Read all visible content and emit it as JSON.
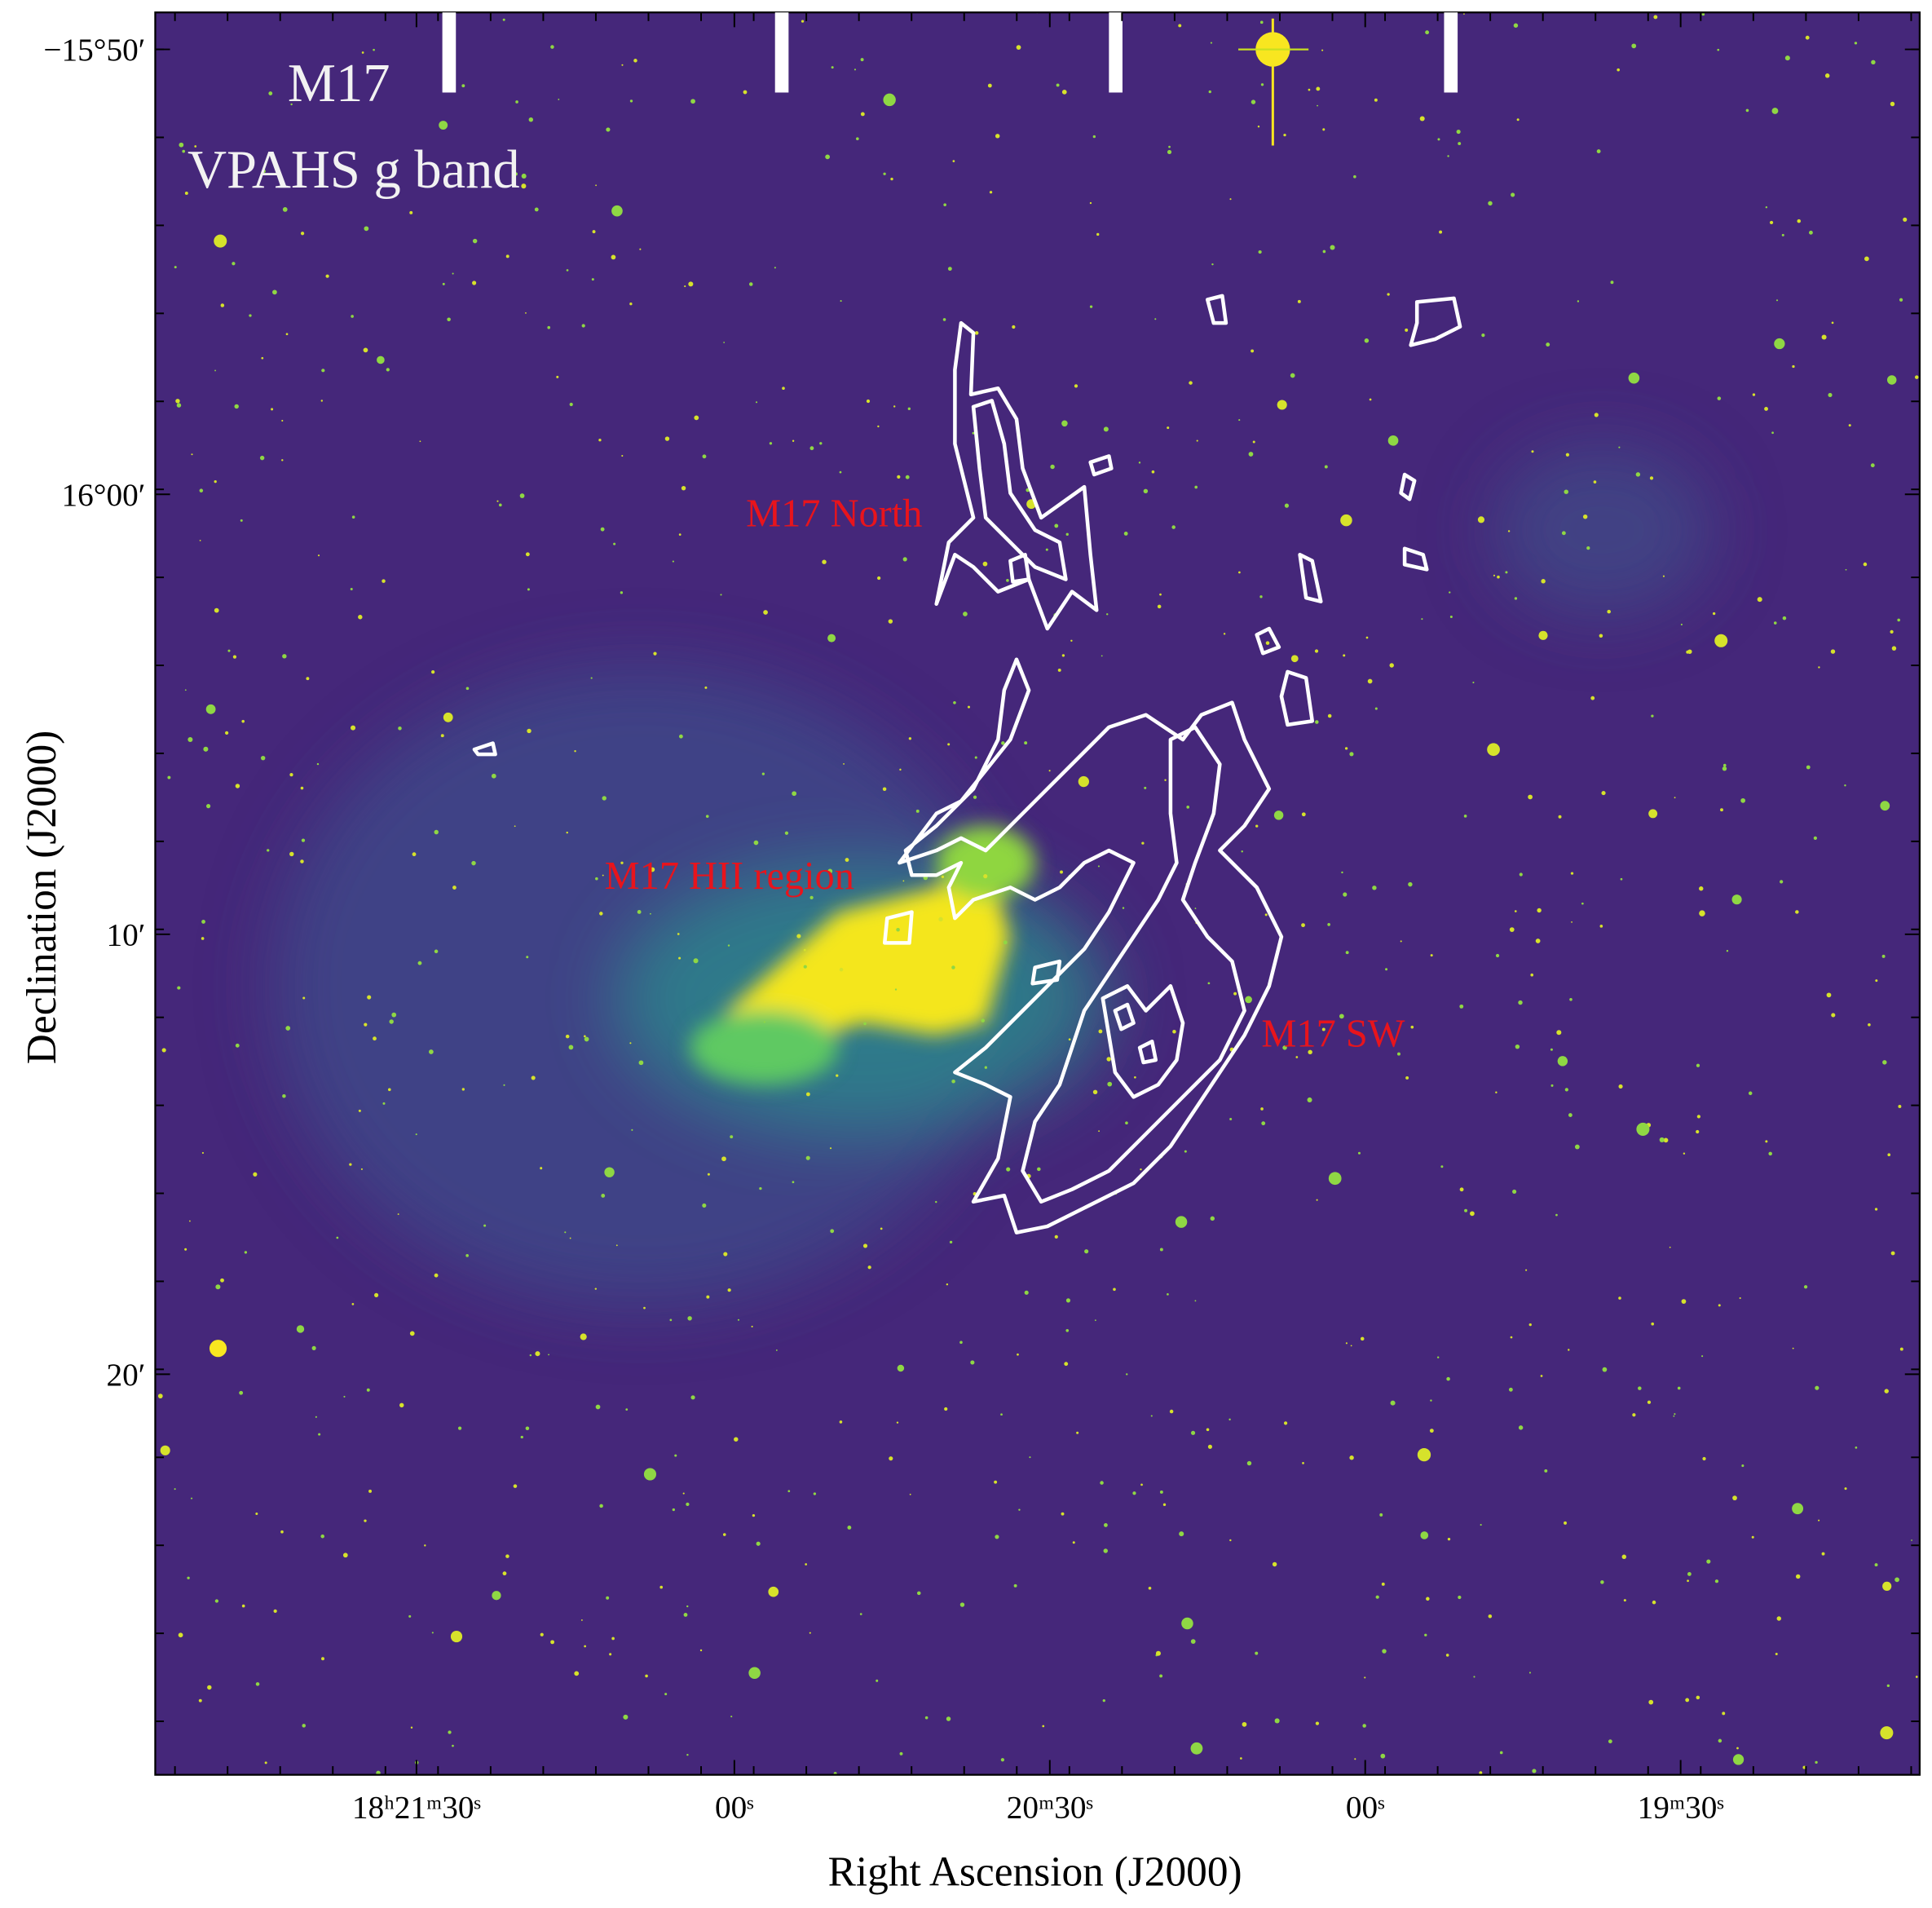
{
  "image": {
    "object": "M17",
    "band": "VPAHS g band",
    "regions": [
      "M17 North",
      "M17 HII region",
      "M17 SW"
    ]
  },
  "axes": {
    "x_label": "Right Ascension (J2000)",
    "y_label": "Declination (J2000)",
    "x_ticks": [
      "18ʰ21ᵐ30ˢ",
      "00ˢ",
      "20ᵐ30ˢ",
      "00ˢ",
      "19ᵐ30ˢ"
    ],
    "y_ticks": [
      "−15°50′",
      "16°00′",
      "10′",
      "20′"
    ]
  }
}
